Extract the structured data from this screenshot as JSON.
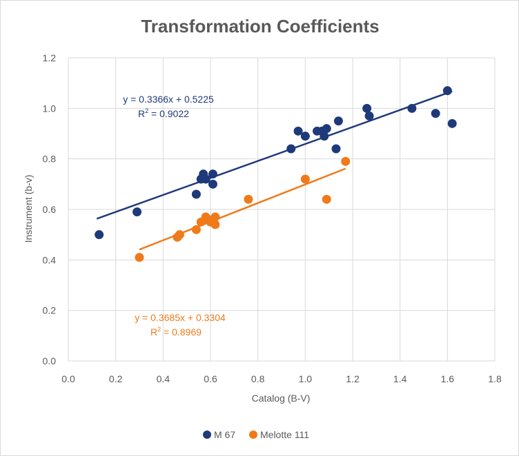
{
  "chart_data": {
    "type": "scatter",
    "title": "Transformation Coefficients",
    "xlabel": "Catalog (B-V)",
    "ylabel": "Instrument (b-v)",
    "xlim": [
      0.0,
      1.8
    ],
    "ylim": [
      0.0,
      1.2
    ],
    "x_ticks": [
      "0.0",
      "0.2",
      "0.4",
      "0.6",
      "0.8",
      "1.0",
      "1.2",
      "1.4",
      "1.6",
      "1.8"
    ],
    "y_ticks": [
      "0.0",
      "0.2",
      "0.4",
      "0.6",
      "0.8",
      "1.0",
      "1.2"
    ],
    "grid": true,
    "legend_position": "bottom",
    "series": [
      {
        "name": "M 67",
        "color": "#1f3a7a",
        "points": [
          [
            0.13,
            0.5
          ],
          [
            0.29,
            0.59
          ],
          [
            0.54,
            0.66
          ],
          [
            0.56,
            0.72
          ],
          [
            0.57,
            0.74
          ],
          [
            0.58,
            0.72
          ],
          [
            0.61,
            0.74
          ],
          [
            0.61,
            0.7
          ],
          [
            0.94,
            0.84
          ],
          [
            0.97,
            0.91
          ],
          [
            1.0,
            0.89
          ],
          [
            1.05,
            0.91
          ],
          [
            1.07,
            0.91
          ],
          [
            1.08,
            0.89
          ],
          [
            1.09,
            0.92
          ],
          [
            1.13,
            0.84
          ],
          [
            1.14,
            0.95
          ],
          [
            1.26,
            1.0
          ],
          [
            1.27,
            0.97
          ],
          [
            1.45,
            1.0
          ],
          [
            1.55,
            0.98
          ],
          [
            1.6,
            1.07
          ],
          [
            1.62,
            0.94
          ]
        ],
        "trendline": {
          "slope": 0.3366,
          "intercept": 0.5225,
          "x_range": [
            0.12,
            1.62
          ],
          "equation": "y = 0.3366x + 0.5225",
          "r2_label": "R",
          "r2_sup": "2",
          "r2_value": " = 0.9022"
        }
      },
      {
        "name": "Melotte 111",
        "color": "#f07a1a",
        "points": [
          [
            0.3,
            0.41
          ],
          [
            0.46,
            0.49
          ],
          [
            0.47,
            0.5
          ],
          [
            0.54,
            0.52
          ],
          [
            0.56,
            0.55
          ],
          [
            0.58,
            0.57
          ],
          [
            0.59,
            0.56
          ],
          [
            0.6,
            0.55
          ],
          [
            0.62,
            0.57
          ],
          [
            0.62,
            0.54
          ],
          [
            0.76,
            0.64
          ],
          [
            1.0,
            0.72
          ],
          [
            1.09,
            0.64
          ],
          [
            1.17,
            0.79
          ]
        ],
        "trendline": {
          "slope": 0.3685,
          "intercept": 0.3304,
          "x_range": [
            0.3,
            1.17
          ],
          "equation": "y = 0.3685x + 0.3304",
          "r2_label": "R",
          "r2_sup": "2",
          "r2_value": " = 0.8969"
        }
      }
    ]
  }
}
